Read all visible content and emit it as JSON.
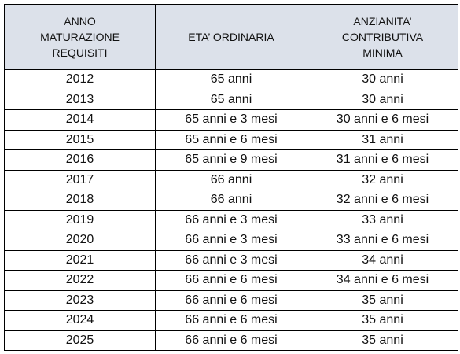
{
  "table": {
    "header": [
      [
        "ANNO",
        "MATURAZIONE",
        "REQUISITI"
      ],
      [
        "ETA’ ORDINARIA"
      ],
      [
        "ANZIANITA’",
        "CONTRIBUTIVA",
        "MINIMA"
      ]
    ],
    "rows": [
      [
        "2012",
        "65 anni",
        "30 anni"
      ],
      [
        "2013",
        "65 anni",
        "30 anni"
      ],
      [
        "2014",
        "65 anni e 3 mesi",
        "30 anni e 6 mesi"
      ],
      [
        "2015",
        "65 anni e 6 mesi",
        "31 anni"
      ],
      [
        "2016",
        "65 anni e 9 mesi",
        "31 anni e 6 mesi"
      ],
      [
        "2017",
        "66 anni",
        "32 anni"
      ],
      [
        "2018",
        "66 anni",
        "32 anni e 6 mesi"
      ],
      [
        "2019",
        "66 anni e 3 mesi",
        "33 anni"
      ],
      [
        "2020",
        "66 anni e 3 mesi",
        "33 anni e 6 mesi"
      ],
      [
        "2021",
        "66 anni e 3 mesi",
        "34 anni"
      ],
      [
        "2022",
        "66 anni e 6 mesi",
        "34 anni e 6 mesi"
      ],
      [
        "2023",
        "66 anni e 6 mesi",
        "35 anni"
      ],
      [
        "2024",
        "66 anni e 6 mesi",
        "35 anni"
      ],
      [
        "2025",
        "66 anni e 6 mesi",
        "35 anni"
      ]
    ]
  }
}
